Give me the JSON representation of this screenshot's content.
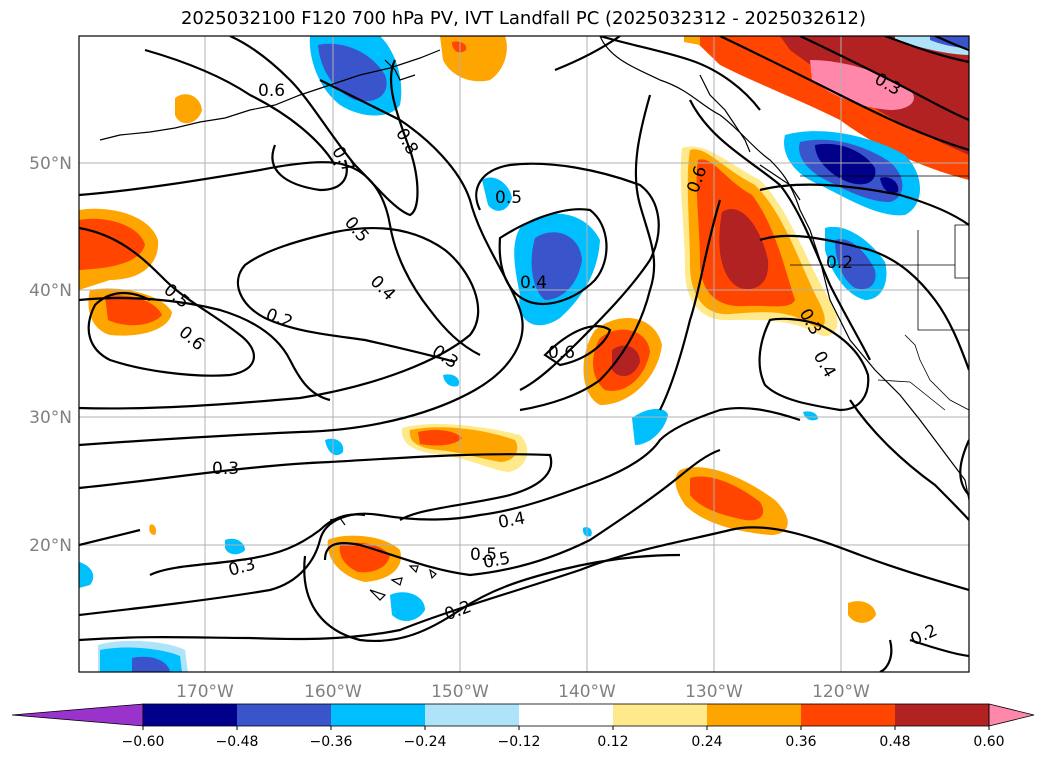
{
  "title": "2025032100 F120 700 hPa PV, IVT Landfall PC (2025032312 - 2025032612)",
  "lon_labels": [
    "170°W",
    "160°W",
    "150°W",
    "140°W",
    "130°W",
    "120°W"
  ],
  "lat_labels": [
    "50°N",
    "40°N",
    "30°N",
    "20°N"
  ],
  "contour_labels": [
    "0.6",
    "0.7",
    "0.8",
    "0.5",
    "0.5",
    "0.4",
    "0.2",
    "0.5",
    "0.6",
    "0.3",
    "0.5",
    "0.4",
    "0.6",
    "0.6",
    "0.3",
    "0.2",
    "0.3",
    "0.4",
    "0.3",
    "0.4",
    "0.5",
    "0.2",
    "0.2",
    "0.3"
  ],
  "colorbar": {
    "ticks": [
      "−0.60",
      "−0.48",
      "−0.36",
      "−0.24",
      "−0.12",
      "0.12",
      "0.24",
      "0.36",
      "0.48",
      "0.60"
    ],
    "colors": [
      "#9933cc",
      "#00008b",
      "#3a55cc",
      "#00bfff",
      "#aee3fa",
      "#ffffff",
      "#ffe98a",
      "#ffa500",
      "#ff4500",
      "#b22222",
      "#ff88aa",
      "#ff88aa"
    ]
  }
}
